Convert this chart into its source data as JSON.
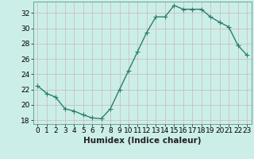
{
  "x": [
    0,
    1,
    2,
    3,
    4,
    5,
    6,
    7,
    8,
    9,
    10,
    11,
    12,
    13,
    14,
    15,
    16,
    17,
    18,
    19,
    20,
    21,
    22,
    23
  ],
  "y": [
    22.5,
    21.5,
    21.0,
    19.5,
    19.2,
    18.7,
    18.3,
    18.2,
    19.5,
    22.0,
    24.5,
    27.0,
    29.5,
    31.5,
    31.5,
    33.0,
    32.5,
    32.5,
    32.5,
    31.5,
    30.8,
    30.2,
    27.8,
    26.5
  ],
  "line_color": "#2d7d6e",
  "marker": "+",
  "marker_size": 4,
  "background_color": "#cceee8",
  "grid_color": "#aaddcc",
  "xlabel": "Humidex (Indice chaleur)",
  "xlim": [
    -0.5,
    23.5
  ],
  "ylim": [
    17.5,
    33.5
  ],
  "yticks": [
    18,
    20,
    22,
    24,
    26,
    28,
    30,
    32
  ],
  "xticks": [
    0,
    1,
    2,
    3,
    4,
    5,
    6,
    7,
    8,
    9,
    10,
    11,
    12,
    13,
    14,
    15,
    16,
    17,
    18,
    19,
    20,
    21,
    22,
    23
  ],
  "tick_fontsize": 6.5,
  "xlabel_fontsize": 7.5,
  "line_width": 1.0,
  "spine_color": "#5a9a8a"
}
